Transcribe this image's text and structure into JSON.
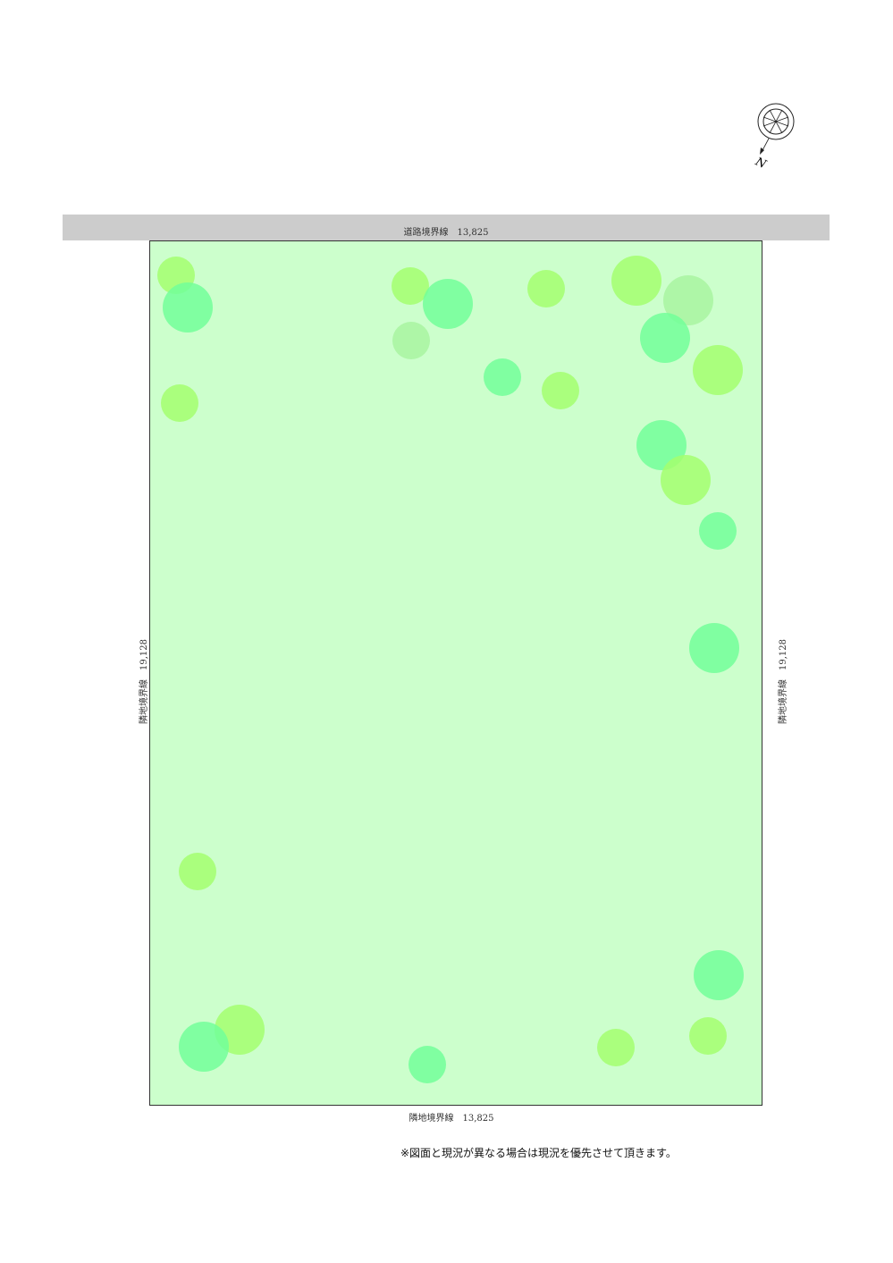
{
  "road": {
    "label": "道路境界線　13,825",
    "color": "#cccccc"
  },
  "lot": {
    "color": "#ccffcc"
  },
  "left_boundary": {
    "label": "隣地境界線　19,128"
  },
  "right_boundary": {
    "label": "隣地境界線　19,128"
  },
  "bottom_boundary": {
    "label": "隣地境界線　13,825"
  },
  "note": "※図面と現況が異なる場合は現況を優先させて頂きます。",
  "compass": {
    "label": "N",
    "icon": "north-arrow-icon"
  },
  "tree_colors": {
    "yellow_green": "#a3ff6e",
    "teal_green": "#72ff99",
    "pale": "#a8f4a0"
  }
}
